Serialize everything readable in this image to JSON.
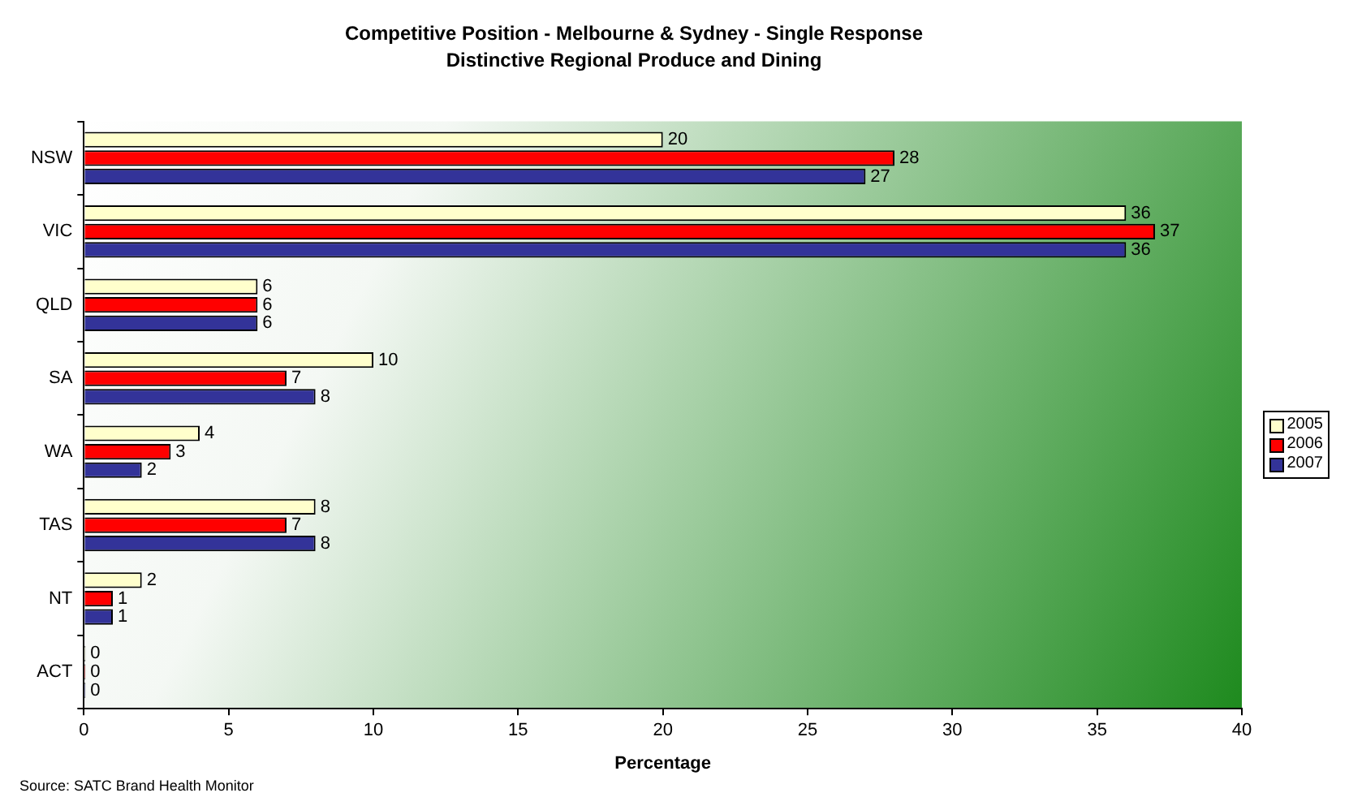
{
  "chart_data": {
    "type": "bar",
    "orientation": "horizontal",
    "title": "Competitive Position - Melbourne & Sydney - Single Response",
    "subtitle": "Distinctive Regional Produce and Dining",
    "xlabel": "Percentage",
    "categories": [
      "NSW",
      "VIC",
      "QLD",
      "SA",
      "WA",
      "TAS",
      "NT",
      "ACT"
    ],
    "series": [
      {
        "name": "2005",
        "color": "#ffffcc",
        "values": [
          20,
          36,
          6,
          10,
          4,
          8,
          2,
          0
        ]
      },
      {
        "name": "2006",
        "color": "#ff0000",
        "values": [
          28,
          37,
          6,
          7,
          3,
          7,
          1,
          0
        ]
      },
      {
        "name": "2007",
        "color": "#333399",
        "values": [
          27,
          36,
          6,
          8,
          2,
          8,
          1,
          0
        ]
      }
    ],
    "xlim": [
      0,
      40
    ],
    "xticks": [
      0,
      5,
      10,
      15,
      20,
      25,
      30,
      35,
      40
    ],
    "data_labels": true,
    "legend": "right",
    "annotations": [
      "Source: SATC Brand Health Monitor"
    ]
  }
}
